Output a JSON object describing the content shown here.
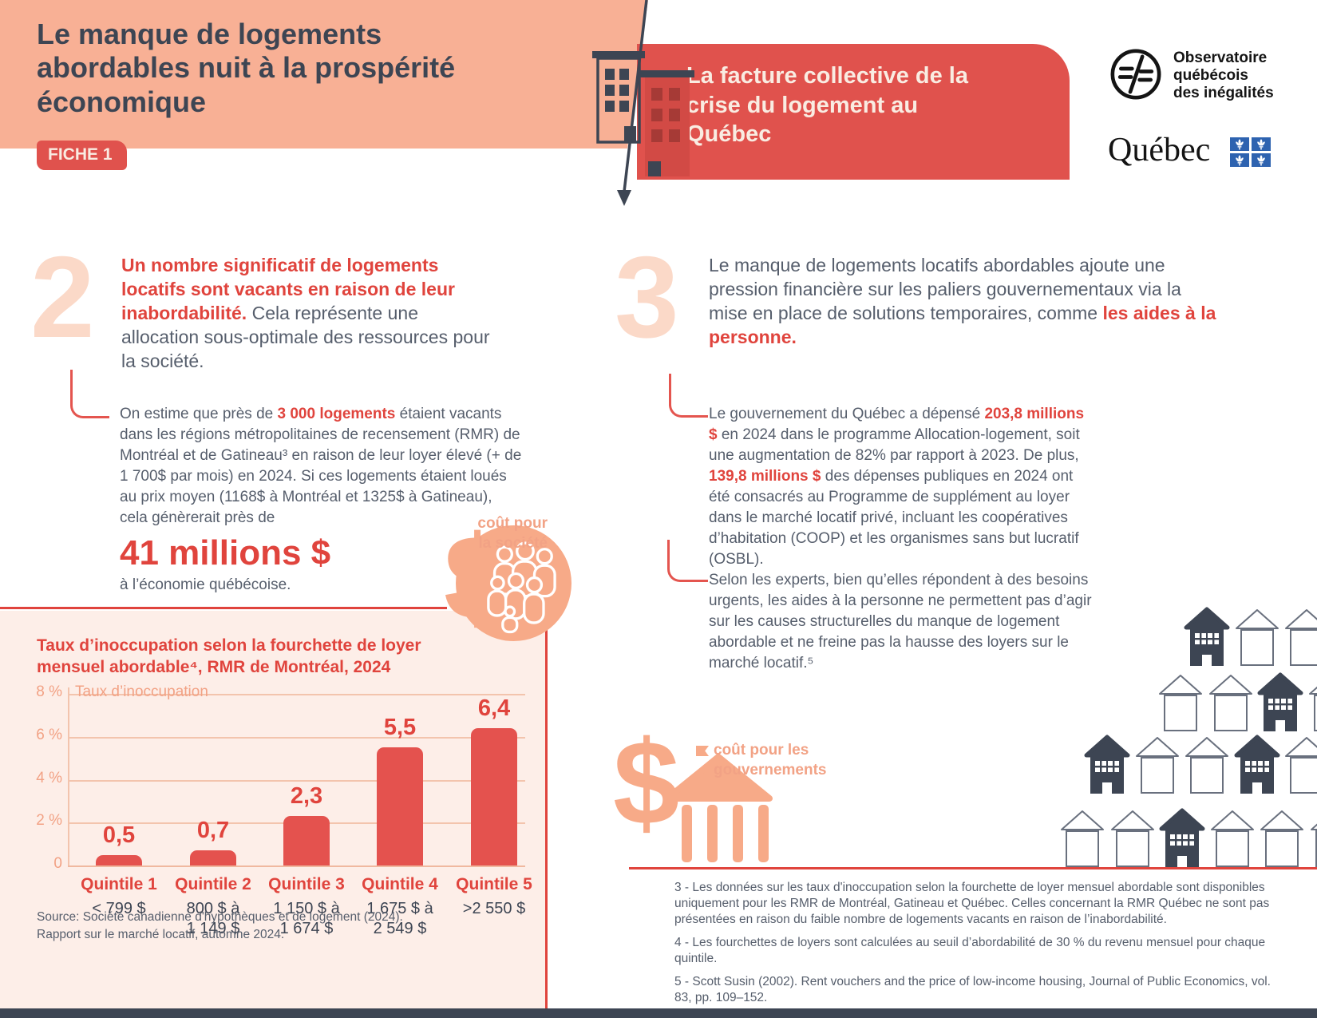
{
  "colors": {
    "peach": "#f8b095",
    "banner_red": "#e0524d",
    "accent_red": "#e0443d",
    "bar_red": "#e4524e",
    "slate": "#3d4553",
    "grey": "#565e6c",
    "salmon": "#f7aa88",
    "panel_pink": "#fdeee8",
    "pale_numeral": "#fbd9c8",
    "quebec_blue": "#2e63b0",
    "cream": "#f9ece2"
  },
  "header": {
    "title": "Le manque de logements abordables nuit à la prospérité économique",
    "badge": "FICHE 1",
    "banner_title": "La facture collective de la crise du logement au Québec",
    "logo_observatoire": "Observatoire\nquébécois\ndes inégalités",
    "logo_quebec": "Québec"
  },
  "section2": {
    "number": "2",
    "lead_red": "Un nombre significatif de logements locatifs sont vacants en raison de leur inabordabilité.",
    "lead_rest": " Cela représente une allocation sous-optimale des ressources pour la société.",
    "body": {
      "p1": "On estime que près de ",
      "b1": "3 000 logements",
      "p2": " étaient vacants dans les régions métropolitaines de recensement (RMR) de Montréal et de Gatineau³ en raison de leur loyer élevé (+ de 1 700$ par mois) en 2024. Si ces logements étaient loués au prix moyen (1168$ à Montréal et 1325$ à Gatineau), cela génèrerait près de"
    },
    "highlight_amount": "41 millions $",
    "tail": "à l’économie québécoise.",
    "society_caption": "coût pour\nla société"
  },
  "chart_data": {
    "type": "bar",
    "title": "Taux d’inoccupation selon la fourchette de loyer mensuel abordable⁴, RMR de Montréal, 2024",
    "ylabel": "Taux d’inoccupation",
    "xlabel": "",
    "ylim": [
      0,
      8
    ],
    "grid": true,
    "yticks": [
      {
        "value": 8,
        "label": "8 %"
      },
      {
        "value": 6,
        "label": "6 %"
      },
      {
        "value": 4,
        "label": "4 %"
      },
      {
        "value": 2,
        "label": "2 %"
      },
      {
        "value": 0,
        "label": "0"
      }
    ],
    "categories": [
      "Quintile 1",
      "Quintile 2",
      "Quintile 3",
      "Quintile 4",
      "Quintile 5"
    ],
    "category_ranges": [
      "< 799 $",
      "800 $ à\n1 149 $",
      "1 150 $ à\n1 674 $",
      "1 675 $ à\n2 549 $",
      ">2 550 $"
    ],
    "values": [
      0.5,
      0.7,
      2.3,
      5.5,
      6.4
    ],
    "value_labels": [
      "0,5",
      "0,7",
      "2,3",
      "5,5",
      "6,4"
    ],
    "bar_color": "#e4524e",
    "source": "Source: Société canadienne d'hypothèques et de logement (2024).\nRapport sur le marché locatif, automne 2024."
  },
  "section3": {
    "number": "3",
    "lead_grey": "Le manque de logements locatifs abordables ajoute une pression financière sur les paliers gouvernementaux via la mise en place de solutions temporaires, comme ",
    "lead_red": "les aides à la personne.",
    "para1": {
      "p1": "Le gouvernement du Québec a dépensé ",
      "b1": "203,8 millions $",
      "p2": " en 2024 dans le programme Allocation-logement, soit une augmentation de 82% par rapport à 2023. De plus, ",
      "b2": "139,8 millions $",
      "p3": " des dépenses publiques en 2024 ont été consacrés au Programme de supplément au loyer dans le marché locatif privé, incluant les coopératives d’habitation (COOP) et les organismes sans but lucratif (OSBL)."
    },
    "para2": "Selon les experts, bien qu’elles répondent à des besoins urgents, les aides à la personne ne permettent pas d’agir sur les causes structurelles du manque de logement abordable et ne freine pas la hausse des loyers sur le marché locatif.⁵",
    "gov_caption": "coût pour les\ngouvernements"
  },
  "footnotes": [
    "3 - Les données sur les taux d'inoccupation selon la fourchette de loyer mensuel abordable sont disponibles uniquement pour les RMR de Montréal, Gatineau et Québec. Celles concernant la RMR Québec ne sont pas présentées en raison du faible nombre de logements vacants en raison de l’inabordabilité.",
    "4 - Les fourchettes de loyers sont calculées au seuil d’abordabilité de 30 % du revenu mensuel pour chaque quintile.",
    "5 - Scott Susin (2002). Rent vouchers and the price of low-income housing, Journal of Public Economics, vol. 83, pp. 109–152."
  ],
  "decor": {
    "house_rows": [
      "FOO",
      "OOFO",
      "FOOFO",
      "OOFOOO"
    ],
    "icons": {
      "society-icon": "dollar sign with circle of people",
      "government-icon": "dollar sign with bank building",
      "header-building-icon": "apartment building split by diagonal arrow",
      "observatoire-logo-icon": "not-equal sign in circle",
      "quebec-flag-icon": "2x2 fleur-de-lis flag"
    }
  }
}
